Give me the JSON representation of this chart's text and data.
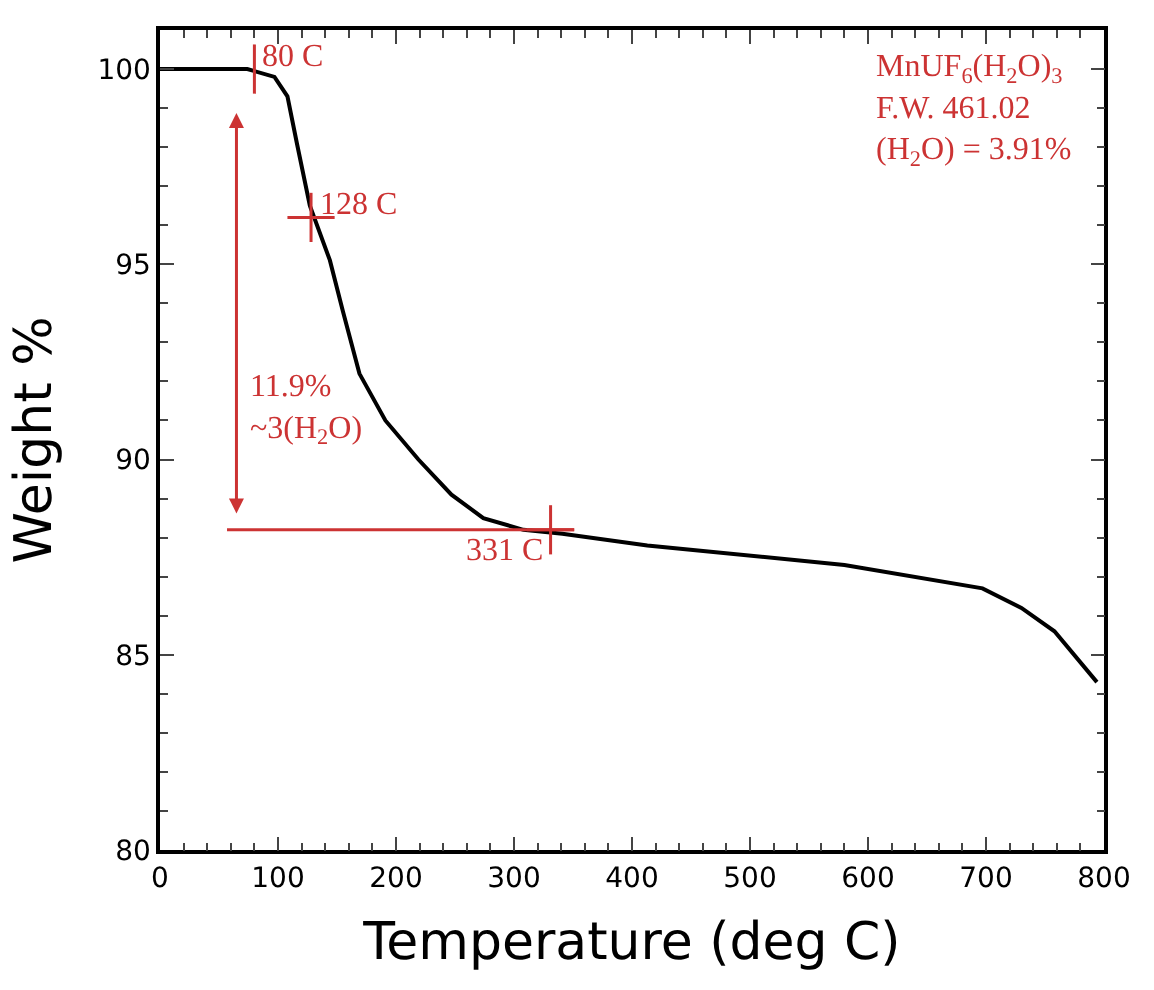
{
  "chart_data": {
    "type": "line",
    "xlabel": "Temperature (deg C)",
    "ylabel": "Weight %",
    "xlim": [
      0,
      800
    ],
    "xticks": [
      0,
      100,
      200,
      300,
      400,
      500,
      600,
      700,
      800
    ],
    "ylim": [
      80,
      101
    ],
    "yticks": [
      80,
      85,
      90,
      95,
      100
    ],
    "marker": "none",
    "line_style": "solid",
    "series": [
      {
        "color": "#000000",
        "x": [
          0,
          74,
          97,
          108,
          116,
          127,
          144,
          155,
          169,
          191,
          219,
          247,
          274,
          308,
          341,
          413,
          580,
          697,
          730,
          758,
          794
        ],
        "values": [
          100,
          100,
          99.8,
          99.3,
          98.1,
          96.5,
          95.1,
          93.8,
          92.2,
          91.0,
          90.0,
          89.1,
          88.5,
          88.2,
          88.1,
          87.8,
          87.3,
          86.7,
          86.2,
          85.6,
          84.3
        ]
      }
    ],
    "annotations": [
      {
        "text": "80 C",
        "x": 80,
        "y": 100
      },
      {
        "text": "128 C",
        "x": 128,
        "y": 96.2
      },
      {
        "text": "331 C",
        "x": 331,
        "y": 88.2
      },
      "11.9%\n~3(H$_{2}$O)",
      "MnUF$_{6}$(H$_{2}$O)$_{3}$\nF.W. 461.02\n(H$_{2}$O) = 3.91%"
    ]
  }
}
